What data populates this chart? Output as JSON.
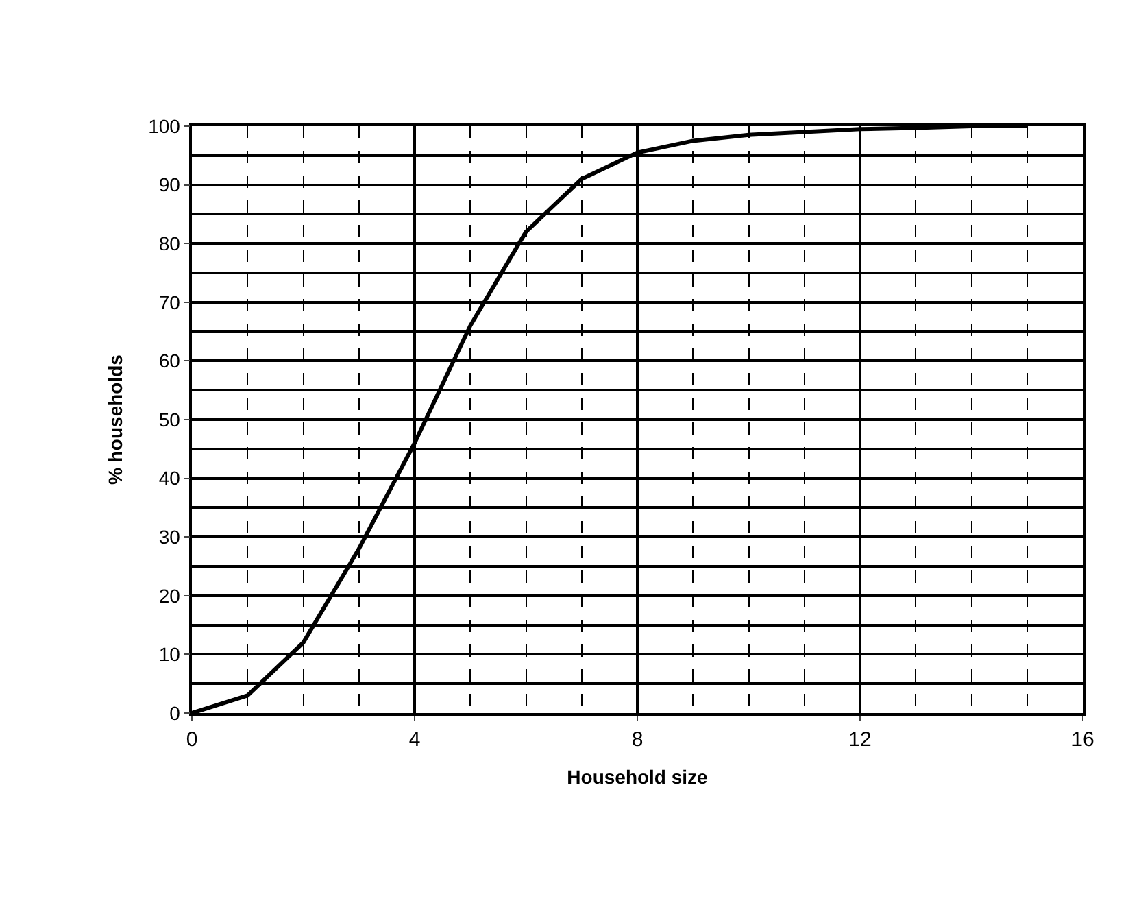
{
  "chart_data": {
    "type": "line",
    "xlabel": "Household size",
    "ylabel": "% households",
    "x": [
      0,
      1,
      2,
      3,
      4,
      5,
      6,
      7,
      8,
      9,
      10,
      11,
      12,
      13,
      14,
      15
    ],
    "series": [
      {
        "color": "#000000",
        "values": [
          0,
          3,
          12,
          28,
          46,
          66,
          82,
          91,
          95.5,
          97.5,
          98.5,
          99,
          99.5,
          99.7,
          100,
          100
        ]
      }
    ],
    "xlim": [
      0,
      16
    ],
    "xticks": [
      0,
      {
        "value": 1,
        "label": null
      },
      {
        "value": 2,
        "label": null
      },
      {
        "value": 3,
        "label": null
      },
      4,
      {
        "value": 5,
        "label": null
      },
      {
        "value": 6,
        "label": null
      },
      {
        "value": 7,
        "label": null
      },
      8,
      {
        "value": 9,
        "label": null
      },
      {
        "value": 10,
        "label": null
      },
      {
        "value": 11,
        "label": null
      },
      12,
      {
        "value": 13,
        "label": null
      },
      {
        "value": 14,
        "label": null
      },
      {
        "value": 15,
        "label": null
      },
      16
    ],
    "ylim": [
      0,
      100
    ],
    "yticks": [
      0,
      {
        "value": 5,
        "label": null
      },
      10,
      {
        "value": 15,
        "label": null
      },
      20,
      {
        "value": 25,
        "label": null
      },
      30,
      {
        "value": 35,
        "label": null
      },
      40,
      {
        "value": 45,
        "label": null
      },
      50,
      {
        "value": 55,
        "label": null
      },
      60,
      {
        "value": 65,
        "label": null
      },
      70,
      {
        "value": 75,
        "label": null
      },
      80,
      {
        "value": 85,
        "label": null
      },
      90,
      {
        "value": 95,
        "label": null
      },
      100
    ],
    "grid": true,
    "legend": false,
    "marker": "none",
    "line_style": "solid"
  }
}
